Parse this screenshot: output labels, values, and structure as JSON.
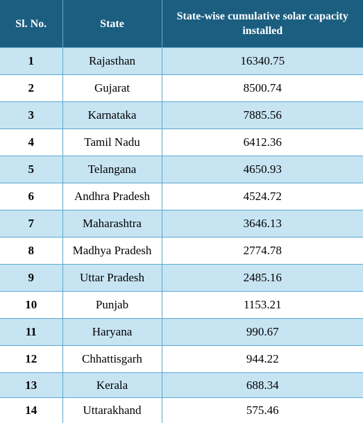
{
  "table": {
    "headers": [
      "Sl. No.",
      "State",
      "State-wise cumulative solar capacity installed"
    ],
    "rows": [
      {
        "sl": "1",
        "state": "Rajasthan",
        "capacity": "16340.75"
      },
      {
        "sl": "2",
        "state": "Gujarat",
        "capacity": "8500.74"
      },
      {
        "sl": "3",
        "state": "Karnataka",
        "capacity": "7885.56"
      },
      {
        "sl": "4",
        "state": "Tamil Nadu",
        "capacity": "6412.36"
      },
      {
        "sl": "5",
        "state": "Telangana",
        "capacity": "4650.93"
      },
      {
        "sl": "6",
        "state": "Andhra Pradesh",
        "capacity": "4524.72"
      },
      {
        "sl": "7",
        "state": "Maharashtra",
        "capacity": "3646.13"
      },
      {
        "sl": "8",
        "state": "Madhya Pradesh",
        "capacity": "2774.78"
      },
      {
        "sl": "9",
        "state": "Uttar Pradesh",
        "capacity": "2485.16"
      },
      {
        "sl": "10",
        "state": "Punjab",
        "capacity": "1153.21"
      },
      {
        "sl": "11",
        "state": "Haryana",
        "capacity": "990.67"
      },
      {
        "sl": "12",
        "state": "Chhattisgarh",
        "capacity": "944.22"
      },
      {
        "sl": "13",
        "state": "Kerala",
        "capacity": "688.34"
      },
      {
        "sl": "14",
        "state": "Uttarakhand",
        "capacity": "575.46"
      }
    ]
  },
  "colors": {
    "header_bg": "#1b5e80",
    "row_alt_bg": "#c7e4f3",
    "row_bg": "#ffffff",
    "border": "#5aa7cf"
  }
}
